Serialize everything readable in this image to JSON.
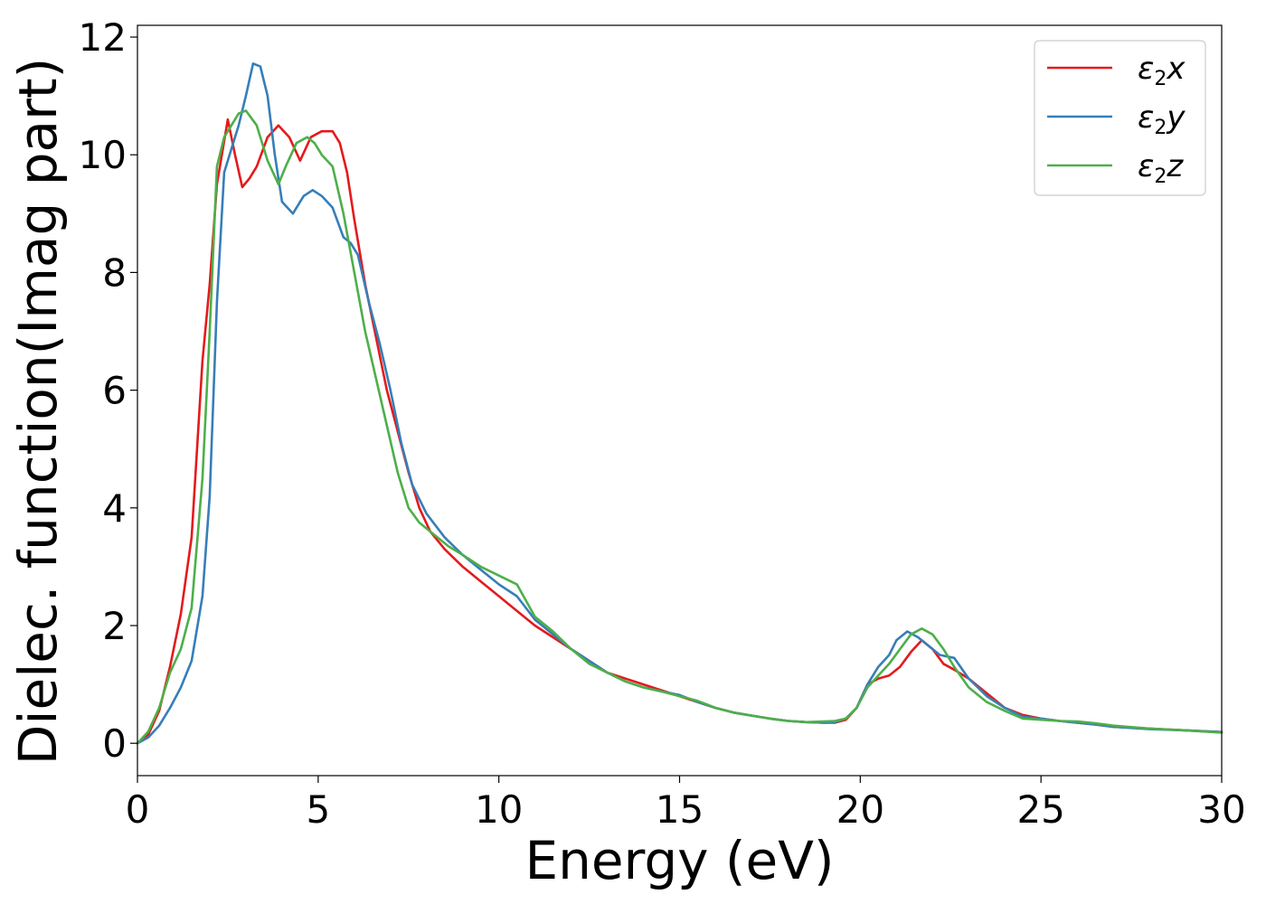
{
  "chart_data": {
    "type": "line",
    "xlabel": "Energy (eV)",
    "ylabel": "Dielec. function(Imag part)",
    "xlim": [
      0,
      30
    ],
    "ylim": [
      -0.55,
      12.2
    ],
    "xticks": [
      0,
      5,
      10,
      15,
      20,
      25,
      30
    ],
    "yticks": [
      0,
      2,
      4,
      6,
      8,
      10,
      12
    ],
    "grid": false,
    "legend_position": "top-right",
    "series": [
      {
        "name": "ε2x",
        "legend": {
          "base": "ε",
          "sub": "2",
          "var": "x"
        },
        "color": "#e41a1c",
        "x": [
          0,
          0.3,
          0.6,
          0.9,
          1.2,
          1.5,
          1.8,
          2.0,
          2.2,
          2.5,
          2.7,
          2.9,
          3.1,
          3.3,
          3.6,
          3.9,
          4.2,
          4.5,
          4.8,
          5.1,
          5.4,
          5.6,
          5.8,
          6.0,
          6.3,
          6.6,
          6.9,
          7.2,
          7.5,
          7.8,
          8.1,
          8.5,
          9.0,
          9.5,
          10.0,
          10.5,
          11.0,
          11.5,
          12.0,
          12.5,
          13.0,
          13.5,
          14.0,
          14.5,
          15.0,
          15.5,
          16.0,
          16.5,
          17.0,
          17.5,
          18.0,
          18.5,
          19.0,
          19.3,
          19.6,
          19.9,
          20.2,
          20.5,
          20.8,
          21.1,
          21.4,
          21.7,
          22.0,
          22.3,
          22.6,
          23.0,
          23.5,
          24.0,
          24.5,
          25.0,
          25.5,
          26.0,
          26.5,
          27.0,
          28.0,
          29.0,
          30.0
        ],
        "y": [
          0,
          0.15,
          0.55,
          1.3,
          2.2,
          3.5,
          6.5,
          7.8,
          9.5,
          10.6,
          10.0,
          9.45,
          9.6,
          9.8,
          10.3,
          10.5,
          10.3,
          9.9,
          10.3,
          10.4,
          10.4,
          10.2,
          9.7,
          8.9,
          7.8,
          6.9,
          6.0,
          5.3,
          4.6,
          4.0,
          3.6,
          3.3,
          3.0,
          2.75,
          2.5,
          2.25,
          2.0,
          1.8,
          1.6,
          1.4,
          1.2,
          1.1,
          1.0,
          0.9,
          0.8,
          0.7,
          0.6,
          0.52,
          0.47,
          0.42,
          0.38,
          0.36,
          0.35,
          0.35,
          0.4,
          0.6,
          1.0,
          1.1,
          1.15,
          1.3,
          1.55,
          1.75,
          1.6,
          1.35,
          1.25,
          1.1,
          0.85,
          0.6,
          0.48,
          0.42,
          0.38,
          0.35,
          0.32,
          0.28,
          0.25,
          0.22,
          0.19
        ]
      },
      {
        "name": "ε2y",
        "legend": {
          "base": "ε",
          "sub": "2",
          "var": "y"
        },
        "color": "#377eb8",
        "x": [
          0,
          0.3,
          0.6,
          0.9,
          1.2,
          1.5,
          1.8,
          2.0,
          2.2,
          2.4,
          2.6,
          2.8,
          3.0,
          3.2,
          3.4,
          3.6,
          3.8,
          4.0,
          4.3,
          4.6,
          4.85,
          5.1,
          5.4,
          5.7,
          5.9,
          6.1,
          6.4,
          6.7,
          7.0,
          7.3,
          7.6,
          8.0,
          8.5,
          9.0,
          9.5,
          10.0,
          10.5,
          11.0,
          11.5,
          12.0,
          12.5,
          13.0,
          13.5,
          14.0,
          14.5,
          15.0,
          15.5,
          16.0,
          16.5,
          17.0,
          17.5,
          18.0,
          18.5,
          19.0,
          19.3,
          19.6,
          19.9,
          20.2,
          20.5,
          20.8,
          21.0,
          21.3,
          21.6,
          21.9,
          22.2,
          22.6,
          23.0,
          23.5,
          24.0,
          24.5,
          25.0,
          25.5,
          26.0,
          26.5,
          27.0,
          28.0,
          29.0,
          30.0
        ],
        "y": [
          0,
          0.1,
          0.3,
          0.6,
          0.95,
          1.4,
          2.5,
          4.2,
          7.5,
          9.7,
          10.1,
          10.5,
          11.0,
          11.55,
          11.5,
          11.0,
          10.0,
          9.2,
          9.0,
          9.3,
          9.4,
          9.3,
          9.1,
          8.6,
          8.5,
          8.3,
          7.5,
          6.8,
          6.0,
          5.1,
          4.4,
          3.9,
          3.5,
          3.2,
          2.95,
          2.7,
          2.5,
          2.1,
          1.85,
          1.6,
          1.4,
          1.2,
          1.05,
          0.95,
          0.88,
          0.82,
          0.7,
          0.6,
          0.52,
          0.47,
          0.42,
          0.38,
          0.36,
          0.35,
          0.36,
          0.42,
          0.6,
          1.0,
          1.3,
          1.5,
          1.75,
          1.9,
          1.8,
          1.65,
          1.5,
          1.45,
          1.1,
          0.8,
          0.6,
          0.45,
          0.42,
          0.38,
          0.35,
          0.32,
          0.28,
          0.24,
          0.22,
          0.19
        ]
      },
      {
        "name": "ε2z",
        "legend": {
          "base": "ε",
          "sub": "2",
          "var": "z"
        },
        "color": "#4daf4a",
        "x": [
          0,
          0.3,
          0.6,
          0.9,
          1.2,
          1.5,
          1.8,
          2.0,
          2.2,
          2.4,
          2.6,
          2.8,
          3.0,
          3.3,
          3.6,
          3.9,
          4.1,
          4.4,
          4.7,
          4.9,
          5.1,
          5.4,
          5.7,
          6.0,
          6.3,
          6.6,
          6.9,
          7.2,
          7.5,
          7.8,
          8.2,
          8.6,
          9.0,
          9.5,
          10.0,
          10.5,
          11.0,
          11.5,
          12.0,
          12.5,
          13.0,
          13.5,
          14.0,
          14.5,
          15.0,
          15.5,
          16.0,
          16.5,
          17.0,
          17.5,
          18.0,
          18.5,
          19.0,
          19.3,
          19.6,
          19.9,
          20.2,
          20.5,
          20.8,
          21.1,
          21.4,
          21.7,
          22.0,
          22.3,
          22.6,
          23.0,
          23.5,
          24.0,
          24.5,
          25.0,
          25.5,
          26.0,
          26.5,
          27.0,
          28.0,
          29.0,
          30.0
        ],
        "y": [
          0,
          0.2,
          0.6,
          1.2,
          1.6,
          2.3,
          4.5,
          7.0,
          9.8,
          10.3,
          10.5,
          10.7,
          10.75,
          10.5,
          9.9,
          9.5,
          9.8,
          10.2,
          10.3,
          10.2,
          10.0,
          9.8,
          9.0,
          8.0,
          7.0,
          6.2,
          5.4,
          4.6,
          4.0,
          3.75,
          3.55,
          3.35,
          3.2,
          3.0,
          2.85,
          2.7,
          2.15,
          1.9,
          1.6,
          1.35,
          1.2,
          1.05,
          0.95,
          0.88,
          0.8,
          0.72,
          0.6,
          0.52,
          0.47,
          0.42,
          0.38,
          0.36,
          0.37,
          0.38,
          0.42,
          0.6,
          0.95,
          1.15,
          1.35,
          1.6,
          1.85,
          1.95,
          1.85,
          1.6,
          1.3,
          0.95,
          0.7,
          0.55,
          0.42,
          0.4,
          0.38,
          0.37,
          0.34,
          0.3,
          0.25,
          0.22,
          0.18
        ]
      }
    ]
  }
}
